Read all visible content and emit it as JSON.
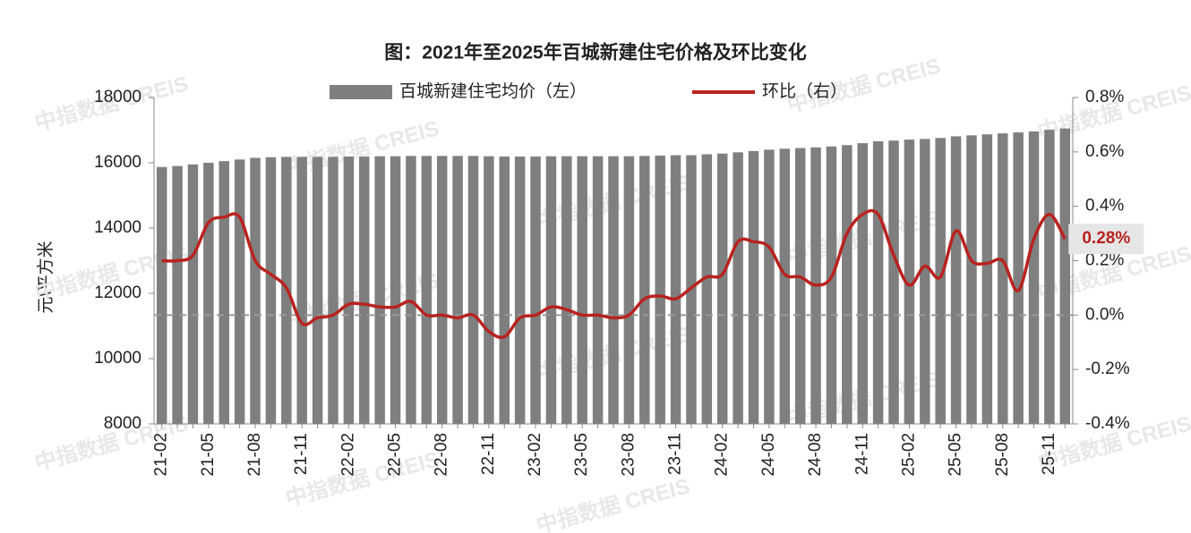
{
  "chart_data": {
    "type": "bar-line",
    "title": "图：2021年至2025年百城新建住宅价格及环比变化",
    "y_label": "元\\平方米",
    "watermark": "中指数据 CREIS",
    "categories": [
      "21-02",
      null,
      null,
      "21-05",
      null,
      null,
      "21-08",
      null,
      null,
      "21-11",
      null,
      null,
      "22-02",
      null,
      null,
      "22-05",
      null,
      null,
      "22-08",
      null,
      null,
      "22-11",
      null,
      null,
      "23-02",
      null,
      null,
      "23-05",
      null,
      null,
      "23-08",
      null,
      null,
      "23-11",
      null,
      null,
      "24-02",
      null,
      null,
      "24-05",
      null,
      null,
      "24-08",
      null,
      null,
      "24-11",
      null,
      null,
      "25-02",
      null,
      null,
      "25-05",
      null,
      null,
      "25-08",
      null,
      null,
      "25-11",
      null
    ],
    "series": [
      {
        "name": "百城新建住宅均价（左）",
        "type": "bar",
        "color": "#7f7f7f",
        "values": [
          15870,
          15900,
          15950,
          16000,
          16050,
          16100,
          16150,
          16170,
          16180,
          16180,
          16180,
          16180,
          16190,
          16190,
          16200,
          16200,
          16210,
          16210,
          16210,
          16210,
          16210,
          16200,
          16190,
          16190,
          16190,
          16200,
          16200,
          16200,
          16200,
          16200,
          16200,
          16210,
          16220,
          16230,
          16230,
          16260,
          16280,
          16320,
          16360,
          16400,
          16430,
          16450,
          16470,
          16500,
          16540,
          16600,
          16660,
          16680,
          16710,
          16730,
          16760,
          16810,
          16840,
          16870,
          16900,
          16930,
          16960,
          17010,
          17050
        ]
      },
      {
        "name": "环比（右）",
        "type": "line",
        "axis": "y2",
        "color": "#b8231f",
        "values": [
          0.2,
          0.2,
          0.22,
          0.34,
          0.36,
          0.36,
          0.2,
          0.15,
          0.1,
          -0.03,
          -0.01,
          0.0,
          0.04,
          0.04,
          0.03,
          0.03,
          0.05,
          0.0,
          0.0,
          -0.01,
          0.0,
          -0.06,
          -0.08,
          -0.01,
          0.0,
          0.03,
          0.02,
          0.0,
          0.0,
          -0.01,
          0.0,
          0.06,
          0.07,
          0.06,
          0.1,
          0.14,
          0.15,
          0.27,
          0.27,
          0.25,
          0.15,
          0.14,
          0.11,
          0.14,
          0.3,
          0.37,
          0.37,
          0.22,
          0.11,
          0.18,
          0.14,
          0.31,
          0.2,
          0.19,
          0.2,
          0.09,
          0.28,
          0.37,
          0.28
        ],
        "value_labels": [
          null,
          null,
          null,
          null,
          null,
          null,
          null,
          null,
          null,
          null,
          null,
          null,
          null,
          null,
          null,
          null,
          null,
          null,
          null,
          null,
          null,
          null,
          null,
          null,
          null,
          null,
          null,
          null,
          null,
          null,
          null,
          null,
          null,
          null,
          null,
          null,
          null,
          null,
          null,
          null,
          null,
          null,
          null,
          null,
          null,
          null,
          null,
          null,
          null,
          null,
          null,
          null,
          null,
          null,
          null,
          null,
          null,
          null,
          "0.28%"
        ]
      }
    ],
    "ylim": [
      8000,
      18000
    ],
    "yticks": [
      8000,
      10000,
      12000,
      14000,
      16000,
      18000
    ],
    "y2lim": [
      -0.4,
      0.8
    ],
    "y2ticks": [
      {
        "value": -0.4,
        "label": "-0.4%"
      },
      {
        "value": -0.2,
        "label": "-0.2%"
      },
      {
        "value": 0.0,
        "label": "0.0%"
      },
      {
        "value": 0.2,
        "label": "0.2%"
      },
      {
        "value": 0.4,
        "label": "0.4%"
      },
      {
        "value": 0.6,
        "label": "0.6%"
      },
      {
        "value": 0.8,
        "label": "0.8%"
      }
    ],
    "legend": "top"
  }
}
